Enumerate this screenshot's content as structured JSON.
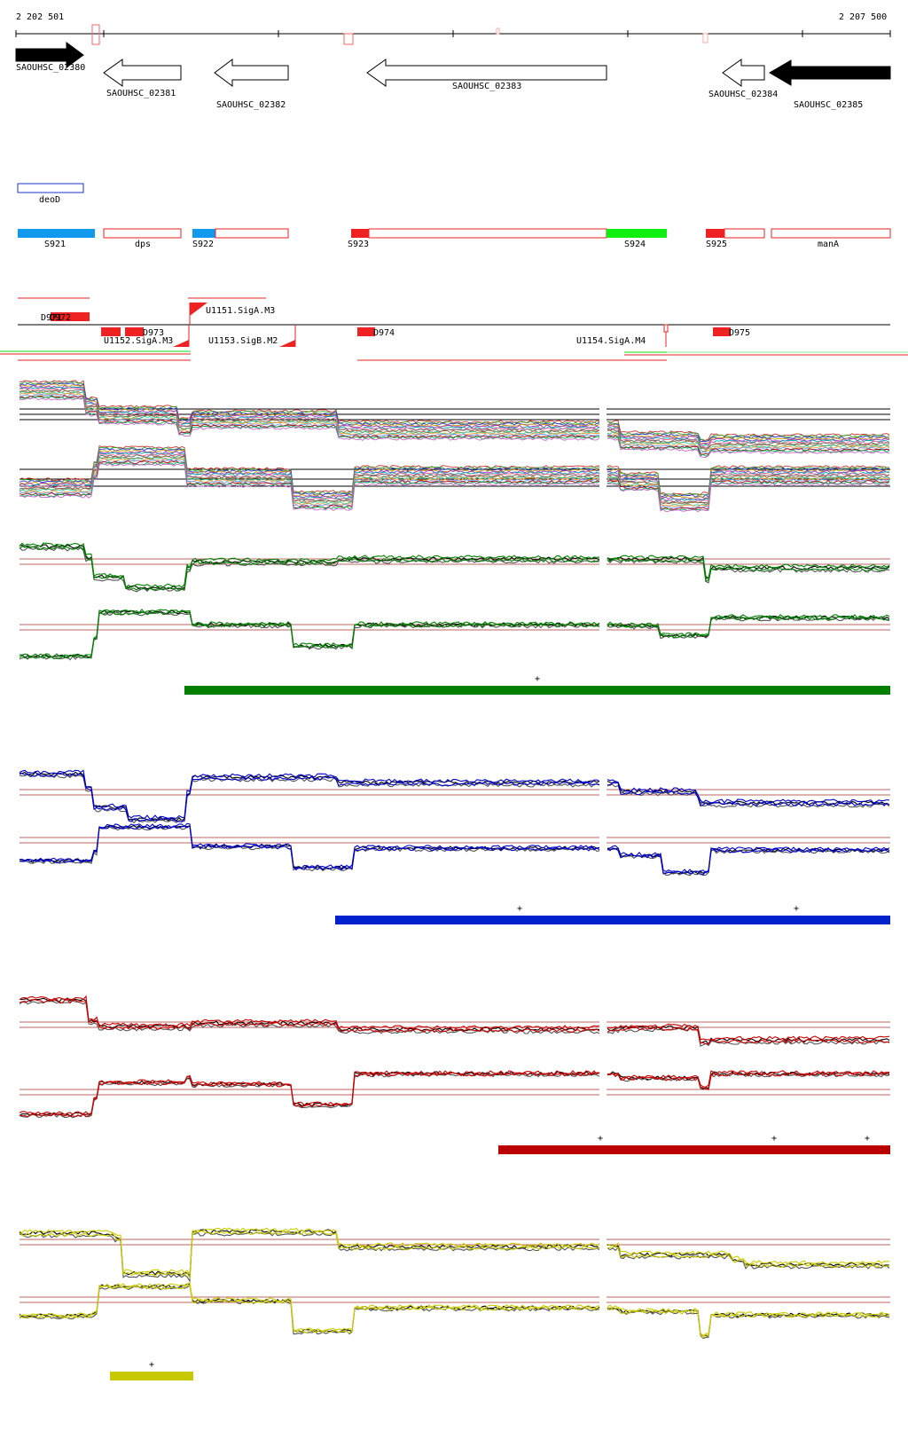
{
  "ruler": {
    "start": "2 202 501",
    "end": "2 207 500"
  },
  "genes": [
    {
      "id": "SAOUHSC_02380",
      "filled": true
    },
    {
      "id": "SAOUHSC_02381",
      "filled": false
    },
    {
      "id": "SAOUHSC_02382",
      "filled": false
    },
    {
      "id": "SAOUHSC_02383",
      "filled": false
    },
    {
      "id": "SAOUHSC_02384",
      "filled": false
    },
    {
      "id": "SAOUHSC_02385",
      "filled": true
    }
  ],
  "annotation_deoD": "deoD",
  "segments": [
    "S921",
    "dps",
    "S922",
    "S923",
    "S924",
    "S925",
    "manA"
  ],
  "promoters": [
    "D971",
    "D972",
    "D973",
    "U1151.SigA.M3",
    "U1152.SigA.M3",
    "U1153.SigB.M2",
    "D974",
    "U1154.SigA.M4",
    "D975"
  ],
  "panels": [
    {
      "color": "#008000",
      "bar_color": "#008000",
      "plus_marks": [
        "+"
      ]
    },
    {
      "color": "#0000cc",
      "bar_color": "#0022cc",
      "plus_marks": [
        "+",
        "+"
      ]
    },
    {
      "color": "#cc0000",
      "bar_color": "#bb0000",
      "plus_marks": [
        "+",
        "+",
        "+"
      ]
    },
    {
      "color": "#cccc00",
      "bar_color": "#c8c800",
      "plus_marks": [
        "+"
      ]
    }
  ]
}
